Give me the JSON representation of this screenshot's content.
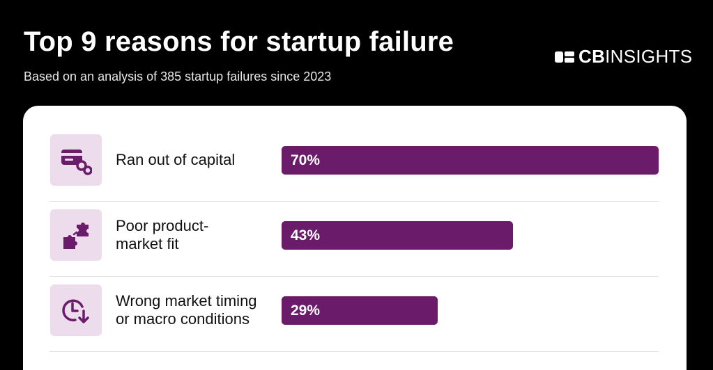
{
  "header": {
    "title": "Top 9 reasons for startup failure",
    "subtitle": "Based on an analysis of 385 startup failures since 2023"
  },
  "brand": {
    "bold": "CB",
    "regular": "INSIGHTS"
  },
  "colors": {
    "background": "#000000",
    "card": "#ffffff",
    "bar": "#6a1b6a",
    "icon_bg": "#ecdcec",
    "icon": "#6a1b6a"
  },
  "chart_data": {
    "type": "bar",
    "orientation": "horizontal",
    "title": "Top 9 reasons for startup failure",
    "subtitle": "Based on an analysis of 385 startup failures since 2023",
    "xlim": [
      0,
      70
    ],
    "grid": false,
    "categories": [
      "Ran out of capital",
      "Poor product-market fit",
      "Wrong market timing or macro conditions"
    ],
    "values": [
      70,
      43,
      29
    ],
    "value_labels": [
      "70%",
      "43%",
      "29%"
    ],
    "icons": [
      "wallet-coins-icon",
      "puzzle-pieces-icon",
      "clock-down-icon"
    ]
  }
}
